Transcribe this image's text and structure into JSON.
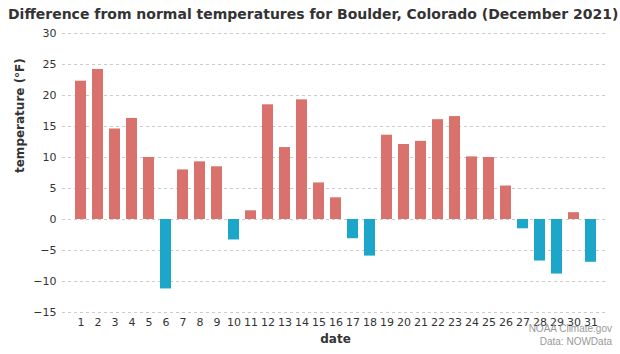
{
  "chart_data": {
    "type": "bar",
    "title": "Difference from normal temperatures for Boulder, Colorado (December 2021)",
    "xlabel": "date",
    "ylabel": "temperature (°F)",
    "annotations": [
      "NOAA Climate.gov",
      "Data: NOWData"
    ],
    "categories": [
      "1",
      "2",
      "3",
      "4",
      "5",
      "6",
      "7",
      "8",
      "9",
      "10",
      "11",
      "12",
      "13",
      "14",
      "15",
      "16",
      "17",
      "18",
      "19",
      "20",
      "21",
      "22",
      "23",
      "24",
      "25",
      "26",
      "27",
      "28",
      "29",
      "30",
      "31"
    ],
    "values": [
      22.3,
      24.2,
      14.6,
      16.3,
      10,
      -11.2,
      8,
      9.3,
      8.5,
      -3.3,
      1.4,
      18.5,
      11.6,
      19.3,
      5.9,
      3.5,
      -3.1,
      -5.9,
      13.6,
      12.1,
      12.6,
      16.1,
      16.6,
      10.1,
      10,
      5.4,
      -1.5,
      -6.7,
      -8.8,
      1.1,
      -6.9
    ],
    "colors": [
      "#d9726d",
      "#d9726d",
      "#d9726d",
      "#d9726d",
      "#d9726d",
      "#1ca6c9",
      "#d9726d",
      "#d9726d",
      "#d9726d",
      "#1ca6c9",
      "#d9726d",
      "#d9726d",
      "#d9726d",
      "#d9726d",
      "#d9726d",
      "#d9726d",
      "#1ca6c9",
      "#1ca6c9",
      "#d9726d",
      "#d9726d",
      "#d9726d",
      "#d9726d",
      "#d9726d",
      "#d9726d",
      "#d9726d",
      "#d9726d",
      "#1ca6c9",
      "#1ca6c9",
      "#1ca6c9",
      "#d9726d",
      "#1ca6c9"
    ],
    "ylim": [
      -15,
      30
    ],
    "yticks": [
      -15,
      -10,
      -5,
      0,
      5,
      10,
      15,
      20,
      25,
      30
    ],
    "grid": true
  }
}
